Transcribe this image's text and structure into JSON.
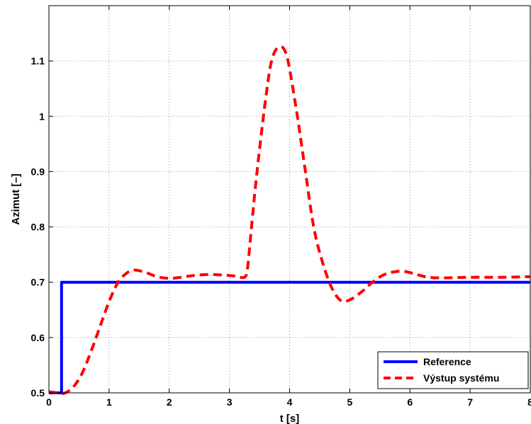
{
  "chart_data": {
    "type": "line",
    "xlabel": "t [s]",
    "ylabel": "Azimut [–]",
    "xlim": [
      0,
      8
    ],
    "ylim": [
      0.5,
      1.2
    ],
    "xticks": [
      0,
      1,
      2,
      3,
      4,
      5,
      6,
      7,
      8
    ],
    "xtick_labels": [
      "0",
      "1",
      "2",
      "3",
      "4",
      "5",
      "6",
      "7",
      "8"
    ],
    "yticks": [
      0.5,
      0.6,
      0.7,
      0.8,
      0.9,
      1.0,
      1.1
    ],
    "ytick_labels": [
      "0.5",
      "0.6",
      "0.7",
      "0.8",
      "0.9",
      "1",
      "1.1"
    ],
    "grid": true,
    "legend_position": "bottom-right",
    "series": [
      {
        "name": "Reference",
        "color": "#0000ff",
        "style": "solid",
        "points": [
          [
            0,
            0.5
          ],
          [
            0.21,
            0.5
          ],
          [
            0.21,
            0.7
          ],
          [
            8,
            0.7
          ]
        ]
      },
      {
        "name": "Výstup systému",
        "color": "#ff0000",
        "style": "dashed",
        "points": [
          [
            0,
            0.502
          ],
          [
            0.15,
            0.5
          ],
          [
            0.25,
            0.499
          ],
          [
            0.4,
            0.51
          ],
          [
            0.55,
            0.535
          ],
          [
            0.7,
            0.575
          ],
          [
            0.85,
            0.62
          ],
          [
            1.0,
            0.665
          ],
          [
            1.15,
            0.7
          ],
          [
            1.3,
            0.717
          ],
          [
            1.42,
            0.722
          ],
          [
            1.6,
            0.718
          ],
          [
            1.8,
            0.71
          ],
          [
            2.0,
            0.707
          ],
          [
            2.2,
            0.709
          ],
          [
            2.4,
            0.712
          ],
          [
            2.65,
            0.714
          ],
          [
            2.9,
            0.713
          ],
          [
            3.1,
            0.711
          ],
          [
            3.25,
            0.709
          ],
          [
            3.3,
            0.725
          ],
          [
            3.35,
            0.78
          ],
          [
            3.42,
            0.86
          ],
          [
            3.5,
            0.94
          ],
          [
            3.6,
            1.03
          ],
          [
            3.7,
            1.1
          ],
          [
            3.82,
            1.125
          ],
          [
            3.95,
            1.11
          ],
          [
            4.1,
            1.02
          ],
          [
            4.25,
            0.91
          ],
          [
            4.4,
            0.8
          ],
          [
            4.55,
            0.735
          ],
          [
            4.7,
            0.69
          ],
          [
            4.85,
            0.667
          ],
          [
            5.0,
            0.668
          ],
          [
            5.2,
            0.683
          ],
          [
            5.4,
            0.702
          ],
          [
            5.6,
            0.715
          ],
          [
            5.85,
            0.72
          ],
          [
            6.05,
            0.716
          ],
          [
            6.3,
            0.709
          ],
          [
            6.6,
            0.708
          ],
          [
            7.0,
            0.709
          ],
          [
            7.5,
            0.709
          ],
          [
            8.0,
            0.71
          ]
        ]
      }
    ]
  }
}
